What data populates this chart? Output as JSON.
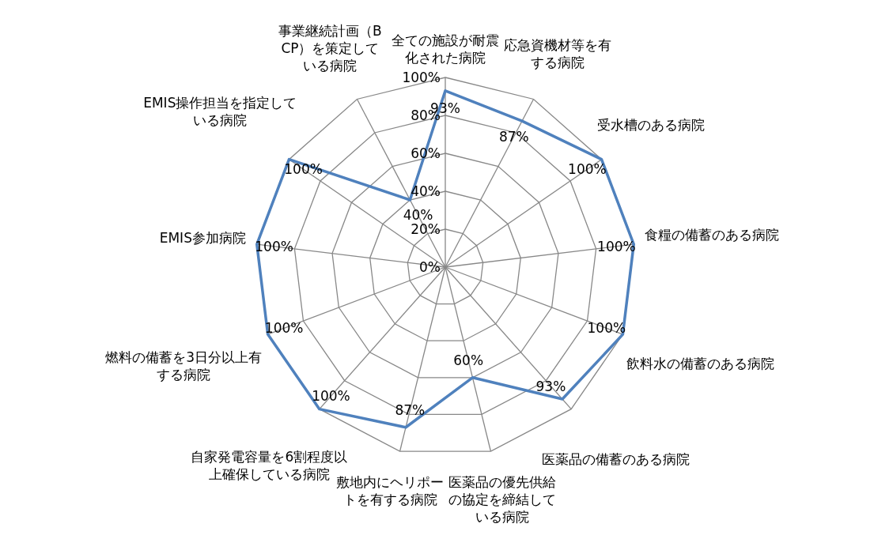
{
  "chart_data": {
    "type": "radar",
    "categories": [
      "全ての施設が耐震化された病院",
      "応急資機材等を有する病院",
      "受水槽のある病院",
      "食糧の備蓄のある病院",
      "飲料水の備蓄のある病院",
      "医薬品の備蓄のある病院",
      "医薬品の優先供給の協定を締結している病院",
      "敷地内にヘリポートを有する病院",
      "自家発電容量を6割程度以上確保している病院",
      "燃料の備蓄を3日分以上有する病院",
      "EMIS参加病院",
      "EMIS操作担当を指定している病院",
      "事業継続計画（BCP）を策定している病院"
    ],
    "series": [
      {
        "color": "#4f81bd",
        "values": [
          93,
          87,
          100,
          100,
          100,
          93,
          60,
          87,
          100,
          100,
          100,
          100,
          40
        ],
        "value_labels": [
          "93%",
          "87%",
          "100%",
          "100%",
          "100%",
          "93%",
          "60%",
          "87%",
          "100%",
          "100%",
          "100%",
          "100%",
          "40%"
        ]
      }
    ],
    "ylim": [
      0,
      100
    ],
    "yticks": [
      {
        "value": 0,
        "label": "0%"
      },
      {
        "value": 20,
        "label": "20%"
      },
      {
        "value": 40,
        "label": "40%"
      },
      {
        "value": 60,
        "label": "60%"
      },
      {
        "value": 80,
        "label": "80%"
      },
      {
        "value": 100,
        "label": "100%"
      }
    ],
    "grid": true,
    "legend": false,
    "marker": "none",
    "line_style": "solid"
  }
}
